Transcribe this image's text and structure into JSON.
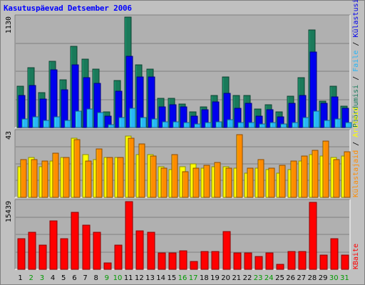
{
  "title": "Kasutuspäevad Detsember 2006",
  "colors": {
    "background": "#c0c0c0",
    "plot_background": "#b0b0b0",
    "grid": "#808080",
    "visits": "#1a7a5a",
    "pages": "#0000ee",
    "files": "#29b6f6",
    "sites": "#ffff00",
    "hits": "#ff8c00",
    "kbytes": "#ff0000",
    "weekday": "#000000",
    "weekend": "#009900"
  },
  "chart_data": [
    {
      "type": "bar",
      "name": "top",
      "ymax_label": "1130",
      "ylim": [
        0,
        1130
      ],
      "legend": {
        "visits": "Pöördumisi",
        "sep1": " / ",
        "files": "Faile",
        "sep2": " / ",
        "pages": "Külastusi"
      },
      "categories": [
        "1",
        "2",
        "3",
        "4",
        "5",
        "6",
        "7",
        "8",
        "9",
        "10",
        "11",
        "12",
        "13",
        "14",
        "15",
        "16",
        "17",
        "18",
        "19",
        "20",
        "21",
        "22",
        "23",
        "24",
        "25",
        "26",
        "27",
        "28",
        "29",
        "30",
        "31"
      ],
      "series": [
        {
          "key": "visits",
          "values": [
            420,
            610,
            360,
            680,
            490,
            830,
            700,
            600,
            160,
            480,
            1130,
            640,
            600,
            300,
            300,
            240,
            160,
            210,
            330,
            520,
            330,
            330,
            190,
            230,
            160,
            320,
            510,
            1000,
            270,
            420,
            220
          ]
        },
        {
          "key": "pages",
          "values": [
            330,
            430,
            290,
            590,
            390,
            640,
            510,
            450,
            120,
            370,
            730,
            520,
            520,
            210,
            230,
            210,
            120,
            180,
            260,
            350,
            200,
            250,
            120,
            180,
            110,
            250,
            330,
            770,
            250,
            310,
            200
          ]
        },
        {
          "key": "files",
          "values": [
            90,
            110,
            70,
            110,
            70,
            170,
            190,
            150,
            30,
            100,
            200,
            100,
            90,
            60,
            60,
            50,
            40,
            50,
            60,
            80,
            50,
            50,
            40,
            50,
            40,
            50,
            100,
            170,
            70,
            90,
            50
          ]
        }
      ],
      "grid": true
    },
    {
      "type": "bar",
      "name": "middle",
      "ymax_label": "43",
      "ylim": [
        0,
        43
      ],
      "legend": {
        "hits": "Külastajaid",
        "sep1": " / ",
        "sites": "Aruteid"
      },
      "categories": [
        "1",
        "2",
        "3",
        "4",
        "5",
        "6",
        "7",
        "8",
        "9",
        "10",
        "11",
        "12",
        "13",
        "14",
        "15",
        "16",
        "17",
        "18",
        "19",
        "20",
        "21",
        "22",
        "23",
        "24",
        "25",
        "26",
        "27",
        "28",
        "29",
        "30",
        "31"
      ],
      "series": [
        {
          "key": "sites",
          "values": [
            20,
            26,
            20,
            24,
            26,
            39,
            28,
            25,
            26,
            26,
            40,
            28,
            28,
            20,
            18,
            20,
            22,
            19,
            20,
            20,
            19,
            16,
            19,
            18,
            16,
            18,
            24,
            28,
            27,
            26,
            27
          ]
        },
        {
          "key": "hits",
          "values": [
            25,
            25,
            24,
            29,
            26,
            38,
            24,
            32,
            26,
            26,
            39,
            35,
            27,
            19,
            28,
            17,
            19,
            21,
            23,
            19,
            41,
            19,
            25,
            19,
            21,
            24,
            27,
            31,
            37,
            25,
            30
          ]
        }
      ],
      "grid": true
    },
    {
      "type": "bar",
      "name": "bottom",
      "ymax_label": "15439",
      "ylim": [
        0,
        15439
      ],
      "legend": {
        "kbytes": "KBaite"
      },
      "categories": [
        "1",
        "2",
        "3",
        "4",
        "5",
        "6",
        "7",
        "8",
        "9",
        "10",
        "11",
        "12",
        "13",
        "14",
        "15",
        "16",
        "17",
        "18",
        "19",
        "20",
        "21",
        "22",
        "23",
        "24",
        "25",
        "26",
        "27",
        "28",
        "29",
        "30",
        "31"
      ],
      "series": [
        {
          "key": "kbytes",
          "values": [
            7000,
            8500,
            5500,
            11000,
            7000,
            13000,
            10000,
            8500,
            1500,
            5500,
            15439,
            8800,
            8500,
            3800,
            3800,
            4300,
            1800,
            4000,
            4000,
            8600,
            3800,
            3800,
            3000,
            3800,
            1200,
            4000,
            4000,
            15300,
            3200,
            7000,
            3200
          ]
        }
      ],
      "grid": true
    }
  ],
  "days": [
    {
      "label": "1",
      "weekend": false
    },
    {
      "label": "2",
      "weekend": true
    },
    {
      "label": "3",
      "weekend": true
    },
    {
      "label": "4",
      "weekend": false
    },
    {
      "label": "5",
      "weekend": false
    },
    {
      "label": "6",
      "weekend": false
    },
    {
      "label": "7",
      "weekend": false
    },
    {
      "label": "8",
      "weekend": false
    },
    {
      "label": "9",
      "weekend": true
    },
    {
      "label": "10",
      "weekend": true
    },
    {
      "label": "11",
      "weekend": false
    },
    {
      "label": "12",
      "weekend": false
    },
    {
      "label": "13",
      "weekend": false
    },
    {
      "label": "14",
      "weekend": false
    },
    {
      "label": "15",
      "weekend": false
    },
    {
      "label": "16",
      "weekend": true
    },
    {
      "label": "17",
      "weekend": true
    },
    {
      "label": "18",
      "weekend": false
    },
    {
      "label": "19",
      "weekend": false
    },
    {
      "label": "20",
      "weekend": false
    },
    {
      "label": "21",
      "weekend": false
    },
    {
      "label": "22",
      "weekend": false
    },
    {
      "label": "23",
      "weekend": true
    },
    {
      "label": "24",
      "weekend": true
    },
    {
      "label": "25",
      "weekend": false
    },
    {
      "label": "26",
      "weekend": false
    },
    {
      "label": "27",
      "weekend": false
    },
    {
      "label": "28",
      "weekend": false
    },
    {
      "label": "29",
      "weekend": false
    },
    {
      "label": "30",
      "weekend": true
    },
    {
      "label": "31",
      "weekend": true
    }
  ]
}
